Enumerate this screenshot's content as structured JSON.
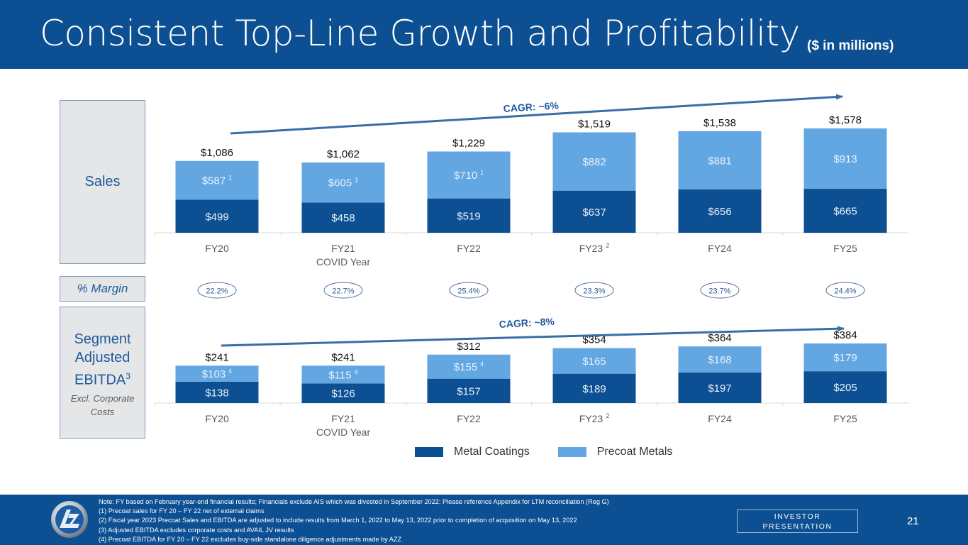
{
  "header": {
    "title": "Consistent Top-Line Growth and Profitability",
    "units": "($ in millions)"
  },
  "side_labels": {
    "sales": "Sales",
    "margin": "% Margin",
    "ebitda_line1": "Segment",
    "ebitda_line2": "Adjusted",
    "ebitda_line3": "EBITDA",
    "ebitda_sup": "3",
    "ebitda_sub": "Excl. Corporate Costs"
  },
  "colors": {
    "metal_coatings": "#0c4f92",
    "precoat_metals": "#62a6e2",
    "header_bg": "#0c4f92",
    "arrow": "#3a6da8"
  },
  "chart_data": [
    {
      "type": "bar",
      "stacked": true,
      "title": "Sales",
      "categories": [
        "FY20",
        "FY21",
        "FY22",
        "FY23",
        "FY24",
        "FY25"
      ],
      "category_sublabels": [
        "",
        "COVID Year",
        "",
        "",
        "",
        ""
      ],
      "category_footnotes": [
        "",
        "",
        "",
        "2",
        "",
        ""
      ],
      "series": [
        {
          "name": "Metal Coatings",
          "values": [
            499,
            458,
            519,
            637,
            656,
            665
          ],
          "labels": [
            "$499",
            "$458",
            "$519",
            "$637",
            "$656",
            "$665"
          ],
          "footnotes": [
            "",
            "",
            "",
            "",
            "",
            ""
          ]
        },
        {
          "name": "Precoat Metals",
          "values": [
            587,
            605,
            710,
            882,
            881,
            913
          ],
          "labels": [
            "$587",
            "$605",
            "$710",
            "$882",
            "$881",
            "$913"
          ],
          "footnotes": [
            "1",
            "1",
            "1",
            "",
            "",
            ""
          ]
        }
      ],
      "totals": [
        1086,
        1062,
        1229,
        1519,
        1538,
        1578
      ],
      "total_labels": [
        "$1,086",
        "$1,062",
        "$1,229",
        "$1,519",
        "$1,538",
        "$1,578"
      ],
      "annotation": "CAGR: ~6%",
      "ylim": [
        0,
        1578
      ]
    },
    {
      "type": "bar",
      "stacked": true,
      "title": "Segment Adjusted EBITDA",
      "categories": [
        "FY20",
        "FY21",
        "FY22",
        "FY23",
        "FY24",
        "FY25"
      ],
      "category_sublabels": [
        "",
        "COVID Year",
        "",
        "",
        "",
        ""
      ],
      "category_footnotes": [
        "",
        "",
        "",
        "2",
        "",
        ""
      ],
      "series": [
        {
          "name": "Metal Coatings",
          "values": [
            138,
            126,
            157,
            189,
            197,
            205
          ],
          "labels": [
            "$138",
            "$126",
            "$157",
            "$189",
            "$197",
            "$205"
          ],
          "footnotes": [
            "",
            "",
            "",
            "",
            "",
            ""
          ]
        },
        {
          "name": "Precoat Metals",
          "values": [
            103,
            115,
            155,
            165,
            168,
            179
          ],
          "labels": [
            "$103",
            "$115",
            "$155",
            "$165",
            "$168",
            "$179"
          ],
          "footnotes": [
            "4",
            "4",
            "4",
            "",
            "",
            ""
          ]
        }
      ],
      "totals": [
        241,
        241,
        312,
        354,
        364,
        384
      ],
      "total_labels": [
        "$241",
        "$241",
        "$312",
        "$354",
        "$364",
        "$384"
      ],
      "annotation": "CAGR: ~8%",
      "ylim": [
        0,
        384
      ]
    }
  ],
  "margins": [
    "22.2%",
    "22.7%",
    "25.4%",
    "23.3%",
    "23.7%",
    "24.4%"
  ],
  "legend": [
    {
      "label": "Metal Coatings",
      "color": "#0c4f92"
    },
    {
      "label": "Precoat Metals",
      "color": "#62a6e2"
    }
  ],
  "footer": {
    "notes": [
      "Note: FY based on February year-end financial results; Financials exclude AIS which was divested in September 2022; Please reference Appendix for LTM reconciliation (Reg G)",
      "(1)  Precoat sales for FY 20 – FY 22 net of external claims",
      "(2)  Fiscal year 2023 Precoat Sales and EBITDA are adjusted to include results from March 1, 2022 to May 13, 2022 prior to completion of acquisition on May 13, 2022",
      "(3)  Adjusted EBITDA excludes corporate costs and AVAIL JV results",
      "(4)  Precoat EBITDA for FY 20 – FY 22 excludes buy-side standalone diligence adjustments made by AZZ"
    ],
    "badge_line1": "INVESTOR",
    "badge_line2": "PRESENTATION",
    "page_number": "21",
    "logo_text": "AZZ"
  }
}
